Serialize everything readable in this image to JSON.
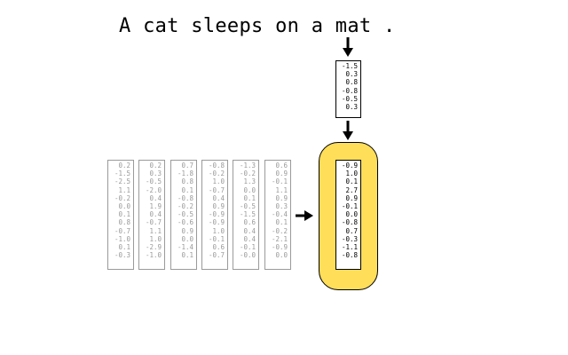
{
  "sentence": "A cat sleeps on a mat .",
  "word_vector": [
    "-1.5",
    "0.3",
    "0.8",
    "-0.8",
    "-0.5",
    "0.3"
  ],
  "hidden_states": [
    [
      "0.2",
      "-1.5",
      "-2.5",
      "1.1",
      "-0.2",
      "0.0",
      "0.1",
      "0.8",
      "-0.7",
      "-1.0",
      "0.1",
      "-0.3"
    ],
    [
      "0.2",
      "0.3",
      "-0.5",
      "-2.0",
      "0.4",
      "1.9",
      "0.4",
      "-0.7",
      "1.1",
      "1.0",
      "-2.9",
      "-1.0"
    ],
    [
      "0.7",
      "-1.8",
      "0.8",
      "0.1",
      "-0.8",
      "-0.2",
      "-0.5",
      "-0.6",
      "0.9",
      "0.0",
      "-1.4",
      "0.1"
    ],
    [
      "-0.8",
      "-0.2",
      "1.0",
      "-0.7",
      "0.4",
      "0.9",
      "-0.9",
      "-0.9",
      "1.0",
      "-0.1",
      "0.6",
      "-0.7"
    ],
    [
      "-1.3",
      "-0.2",
      "1.3",
      "0.0",
      "0.1",
      "-0.5",
      "-1.5",
      "0.6",
      "0.4",
      "0.4",
      "-0.1",
      "-0.0"
    ],
    [
      "0.6",
      "0.9",
      "-0.1",
      "1.1",
      "0.9",
      "0.3",
      "-0.4",
      "0.1",
      "-0.2",
      "-2.1",
      "-0.9",
      "0.0"
    ]
  ],
  "new_state": [
    "-0.9",
    "1.0",
    "0.1",
    "2.7",
    "0.9",
    "-0.1",
    "0.0",
    "-0.8",
    "0.7",
    "-0.3",
    "-1.1",
    "-0.8"
  ],
  "colors": {
    "highlight": "#ffde59",
    "gray_text": "#9a9a9a",
    "dark_text": "#000000"
  }
}
